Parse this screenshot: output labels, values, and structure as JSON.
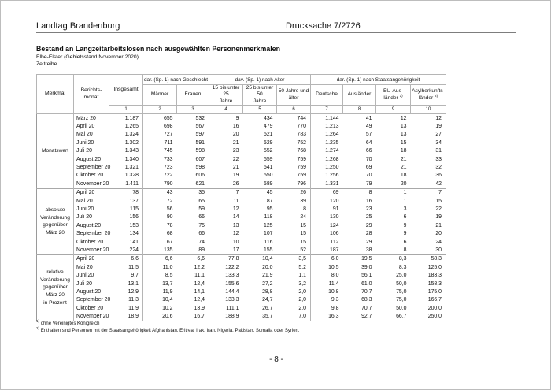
{
  "page_header": {
    "left": "Landtag Brandenburg",
    "right": "Drucksache 7/2726"
  },
  "title_block": {
    "title": "Bestand an Langzeitarbeitslosen nach ausgewählten Personenmerkmalen",
    "subtitle": "Elbe-Elster (Gebietsstand November 2020)",
    "series_label": "Zeitreihe"
  },
  "table": {
    "corner": {
      "merkmal": "Merkmal",
      "berichtsmonat": "Berichts-\nmonat",
      "insgesamt": "Insgesamt"
    },
    "groups": [
      "dar. (Sp. 1) nach Geschlecht",
      "dav. (Sp. 1) nach Alter",
      "dar. (Sp. 1) nach Staatsangehörigkeit"
    ],
    "columns": [
      {
        "id": "maenner",
        "lines": [
          "Männer"
        ]
      },
      {
        "id": "frauen",
        "lines": [
          "Frauen"
        ]
      },
      {
        "id": "alter-15-bis-25",
        "lines": [
          "15 bis unter 25",
          "Jahre"
        ]
      },
      {
        "id": "alter-25-bis-50",
        "lines": [
          "25 bis unter 50",
          "Jahre"
        ]
      },
      {
        "id": "alter-50-plus",
        "lines": [
          "50 Jahre und",
          "älter"
        ]
      },
      {
        "id": "deutsche",
        "lines": [
          "Deutsche"
        ]
      },
      {
        "id": "auslaender",
        "lines": [
          "Ausländer"
        ]
      },
      {
        "id": "eu-auslaender",
        "lines": [
          "EU-Aus-",
          "länder"
        ],
        "sup": "1)"
      },
      {
        "id": "asylherkunftslaender",
        "lines": [
          "Asylherkunfts-",
          "länder"
        ],
        "sup": "2)"
      }
    ],
    "column_numbers": [
      "1",
      "2",
      "3",
      "4",
      "5",
      "6",
      "7",
      "8",
      "9",
      "10"
    ],
    "sections": [
      {
        "label": "Monatswert",
        "rows": [
          {
            "month": "März 20",
            "values": [
              "1.187",
              "655",
              "532",
              "9",
              "434",
              "744",
              "1.144",
              "41",
              "12",
              "12"
            ]
          },
          {
            "month": "April 20",
            "values": [
              "1.265",
              "698",
              "567",
              "16",
              "479",
              "770",
              "1.213",
              "49",
              "13",
              "19"
            ]
          },
          {
            "month": "Mai 20",
            "values": [
              "1.324",
              "727",
              "597",
              "20",
              "521",
              "783",
              "1.264",
              "57",
              "13",
              "27"
            ]
          },
          {
            "month": "Juni 20",
            "values": [
              "1.302",
              "711",
              "591",
              "21",
              "529",
              "752",
              "1.235",
              "64",
              "15",
              "34"
            ]
          },
          {
            "month": "Juli 20",
            "values": [
              "1.343",
              "745",
              "598",
              "23",
              "552",
              "768",
              "1.274",
              "66",
              "18",
              "31"
            ]
          },
          {
            "month": "August 20",
            "values": [
              "1.340",
              "733",
              "607",
              "22",
              "559",
              "759",
              "1.268",
              "70",
              "21",
              "33"
            ]
          },
          {
            "month": "September 20",
            "values": [
              "1.321",
              "723",
              "598",
              "21",
              "541",
              "759",
              "1.250",
              "69",
              "21",
              "32"
            ]
          },
          {
            "month": "Oktober 20",
            "values": [
              "1.328",
              "722",
              "606",
              "19",
              "550",
              "759",
              "1.256",
              "70",
              "18",
              "36"
            ]
          },
          {
            "month": "November 20",
            "values": [
              "1.411",
              "790",
              "621",
              "26",
              "589",
              "796",
              "1.331",
              "79",
              "20",
              "42"
            ]
          }
        ]
      },
      {
        "label": "absolute\nVeränderung\ngegenüber\nMärz 20",
        "rows": [
          {
            "month": "April 20",
            "values": [
              "78",
              "43",
              "35",
              "7",
              "45",
              "26",
              "69",
              "8",
              "1",
              "7"
            ]
          },
          {
            "month": "Mai 20",
            "values": [
              "137",
              "72",
              "65",
              "11",
              "87",
              "39",
              "120",
              "16",
              "1",
              "15"
            ]
          },
          {
            "month": "Juni 20",
            "values": [
              "115",
              "56",
              "59",
              "12",
              "95",
              "8",
              "91",
              "23",
              "3",
              "22"
            ]
          },
          {
            "month": "Juli 20",
            "values": [
              "156",
              "90",
              "66",
              "14",
              "118",
              "24",
              "130",
              "25",
              "6",
              "19"
            ]
          },
          {
            "month": "August 20",
            "values": [
              "153",
              "78",
              "75",
              "13",
              "125",
              "15",
              "124",
              "29",
              "9",
              "21"
            ]
          },
          {
            "month": "September 20",
            "values": [
              "134",
              "68",
              "66",
              "12",
              "107",
              "15",
              "106",
              "28",
              "9",
              "20"
            ]
          },
          {
            "month": "Oktober 20",
            "values": [
              "141",
              "67",
              "74",
              "10",
              "116",
              "15",
              "112",
              "29",
              "6",
              "24"
            ]
          },
          {
            "month": "November 20",
            "values": [
              "224",
              "135",
              "89",
              "17",
              "155",
              "52",
              "187",
              "38",
              "8",
              "30"
            ]
          }
        ]
      },
      {
        "label": "relative\nVeränderung\ngegenüber\nMärz 20\nin Prozent",
        "rows": [
          {
            "month": "April 20",
            "values": [
              "6,6",
              "6,6",
              "6,6",
              "77,8",
              "10,4",
              "3,5",
              "6,0",
              "19,5",
              "8,3",
              "58,3"
            ]
          },
          {
            "month": "Mai 20",
            "values": [
              "11,5",
              "11,0",
              "12,2",
              "122,2",
              "20,0",
              "5,2",
              "10,5",
              "39,0",
              "8,3",
              "125,0"
            ]
          },
          {
            "month": "Juni 20",
            "values": [
              "9,7",
              "8,5",
              "11,1",
              "133,3",
              "21,9",
              "1,1",
              "8,0",
              "56,1",
              "25,0",
              "183,3"
            ]
          },
          {
            "month": "Juli 20",
            "values": [
              "13,1",
              "13,7",
              "12,4",
              "155,6",
              "27,2",
              "3,2",
              "11,4",
              "61,0",
              "50,0",
              "158,3"
            ]
          },
          {
            "month": "August 20",
            "values": [
              "12,9",
              "11,9",
              "14,1",
              "144,4",
              "28,8",
              "2,0",
              "10,8",
              "70,7",
              "75,0",
              "175,0"
            ]
          },
          {
            "month": "September 20",
            "values": [
              "11,3",
              "10,4",
              "12,4",
              "133,3",
              "24,7",
              "2,0",
              "9,3",
              "68,3",
              "75,0",
              "166,7"
            ]
          },
          {
            "month": "Oktober 20",
            "values": [
              "11,9",
              "10,2",
              "13,9",
              "111,1",
              "26,7",
              "2,0",
              "9,8",
              "70,7",
              "50,0",
              "200,0"
            ]
          },
          {
            "month": "November 20",
            "values": [
              "18,9",
              "20,6",
              "16,7",
              "188,9",
              "35,7",
              "7,0",
              "16,3",
              "92,7",
              "66,7",
              "250,0"
            ]
          }
        ]
      }
    ]
  },
  "footnotes": [
    {
      "marker": "1)",
      "text": "ohne Vereinigtes Königreich"
    },
    {
      "marker": "2)",
      "text": "Enthalten sind Personen mit der Staatsangehörigkeit Afghanistan, Eritrea, Irak, Iran, Nigeria, Pakistan, Somalia oder Syrien."
    }
  ],
  "page_number": "- 8 -"
}
